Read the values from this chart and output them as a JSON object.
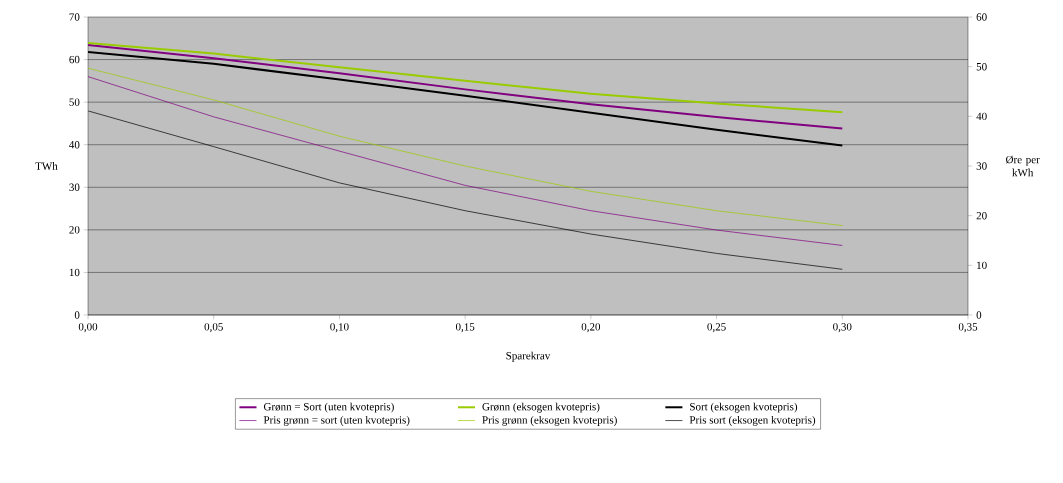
{
  "chart_data": {
    "type": "line",
    "xlabel": "Sparekrav",
    "ylabel": "TWh",
    "y2label": "Øre per kWh",
    "x": [
      0,
      0.05,
      0.1,
      0.15,
      0.2,
      0.25,
      0.3
    ],
    "series": [
      {
        "name": "Grønn = Sort (uten kvotepris)",
        "color": "#800080",
        "values": [
          63.4,
          60.3,
          56.8,
          53.0,
          49.5,
          46.5,
          43.8
        ]
      },
      {
        "name": "Grønn (eksogen kvotepris)",
        "color": "#99cc00",
        "values": [
          63.9,
          61.4,
          58.2,
          55.0,
          52.0,
          49.7,
          47.6
        ]
      },
      {
        "name": "Sort (eksogen kvotepris)",
        "color": "#000000",
        "values": [
          61.8,
          59.0,
          55.3,
          51.5,
          47.5,
          43.5,
          39.8
        ]
      },
      {
        "name": "Pris grønn = sort (uten kvotepris)",
        "color": "#800080",
        "axis": "y2",
        "values": [
          48.0,
          39.9,
          33.0,
          26.1,
          21.0,
          17.1,
          14.0
        ]
      },
      {
        "name": "Pris grønn (eksogen kvotepris)",
        "color": "#99cc00",
        "axis": "y2",
        "values": [
          49.7,
          43.3,
          36.0,
          30.0,
          24.9,
          21.0,
          18.0
        ]
      },
      {
        "name": "Pris sort (eksogen kvotepris)",
        "color": "#000000",
        "axis": "y2",
        "values": [
          41.1,
          33.9,
          26.6,
          21.0,
          16.3,
          12.4,
          9.2
        ]
      }
    ],
    "xlim": [
      0,
      0.35
    ],
    "xticks": [
      {
        "value": 0,
        "label": "0,00"
      },
      {
        "value": 0.05,
        "label": "0,05"
      },
      {
        "value": 0.1,
        "label": "0,10"
      },
      {
        "value": 0.15,
        "label": "0,15"
      },
      {
        "value": 0.2,
        "label": "0,20"
      },
      {
        "value": 0.25,
        "label": "0,25"
      },
      {
        "value": 0.3,
        "label": "0,30"
      },
      {
        "value": 0.35,
        "label": "0,35"
      }
    ],
    "ylim": [
      0,
      70
    ],
    "yticks": [
      0,
      10,
      20,
      30,
      40,
      50,
      60,
      70
    ],
    "y2lim": [
      0,
      60
    ],
    "y2ticks": [
      0,
      10,
      20,
      30,
      40,
      50,
      60
    ],
    "grid": "y",
    "legend": "bottom",
    "marker": "none",
    "line_style": "solid"
  }
}
